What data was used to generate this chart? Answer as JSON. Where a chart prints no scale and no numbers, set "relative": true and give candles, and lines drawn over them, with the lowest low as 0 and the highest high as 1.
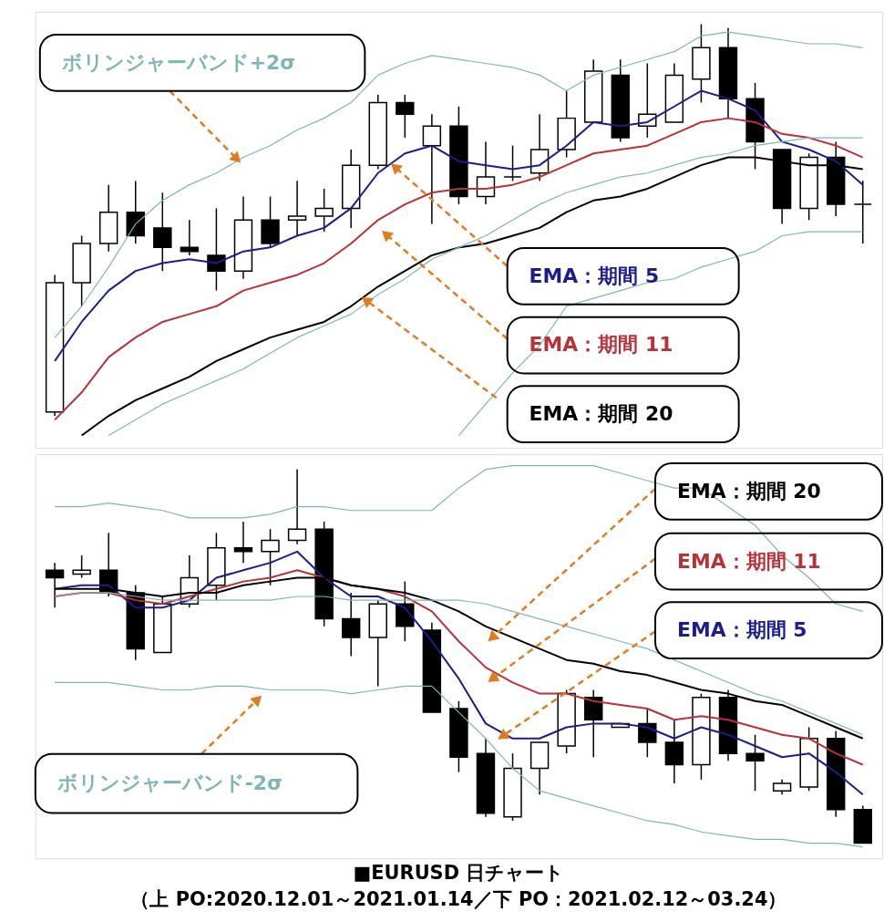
{
  "chart_data": [
    {
      "type": "candlestick",
      "relative": true,
      "categories": [
        null,
        null,
        null,
        null,
        null,
        null,
        null,
        null,
        null,
        null,
        null,
        null,
        null,
        null,
        null,
        null,
        null,
        null,
        null,
        null,
        null,
        null,
        null,
        null,
        null,
        null,
        null,
        null,
        null,
        null,
        null
      ],
      "ohlc": [
        [
          0.01,
          0.36,
          0,
          0.34
        ],
        [
          0.34,
          0.46,
          0.28,
          0.44
        ],
        [
          0.44,
          0.59,
          0.42,
          0.52
        ],
        [
          0.52,
          0.6,
          0.44,
          0.46
        ],
        [
          0.48,
          0.57,
          0.37,
          0.43
        ],
        [
          0.43,
          0.5,
          0.41,
          0.42
        ],
        [
          0.41,
          0.53,
          0.32,
          0.37
        ],
        [
          0.37,
          0.56,
          0.35,
          0.5
        ],
        [
          0.5,
          0.56,
          0.43,
          0.44
        ],
        [
          0.5,
          0.6,
          0.46,
          0.51
        ],
        [
          0.51,
          0.58,
          0.47,
          0.53
        ],
        [
          0.53,
          0.68,
          0.48,
          0.64
        ],
        [
          0.64,
          0.82,
          0.63,
          0.8
        ],
        [
          0.8,
          0.82,
          0.71,
          0.77
        ],
        [
          0.69,
          0.77,
          0.49,
          0.74
        ],
        [
          0.74,
          0.79,
          0.54,
          0.56
        ],
        [
          0.56,
          0.7,
          0.54,
          0.61
        ],
        [
          0.61,
          0.69,
          0.6,
          0.61
        ],
        [
          0.62,
          0.77,
          0.6,
          0.68
        ],
        [
          0.68,
          0.83,
          0.66,
          0.76
        ],
        [
          0.75,
          0.91,
          0.75,
          0.88
        ],
        [
          0.87,
          0.91,
          0.7,
          0.71
        ],
        [
          0.74,
          0.9,
          0.71,
          0.77
        ],
        [
          0.75,
          0.9,
          0.75,
          0.87
        ],
        [
          0.86,
          1,
          0.8,
          0.94
        ],
        [
          0.94,
          0.99,
          0.76,
          0.81
        ],
        [
          0.81,
          0.85,
          0.63,
          0.7
        ],
        [
          0.68,
          0.68,
          0.49,
          0.53
        ],
        [
          0.53,
          0.67,
          0.5,
          0.66
        ],
        [
          0.66,
          0.7,
          0.51,
          0.54
        ],
        [
          0.54,
          0.6,
          0.44,
          0.54
        ]
      ],
      "series": [
        {
          "name": "EMA：期間 5",
          "type": "line",
          "color": "#1c1c8c",
          "values": [
            0.14,
            0.24,
            0.32,
            0.37,
            0.39,
            0.4,
            0.39,
            0.42,
            0.43,
            0.46,
            0.48,
            0.53,
            0.62,
            0.67,
            0.69,
            0.65,
            0.64,
            0.63,
            0.64,
            0.69,
            0.75,
            0.74,
            0.75,
            0.79,
            0.83,
            0.81,
            0.78,
            0.7,
            0.68,
            0.65,
            0.59
          ]
        },
        {
          "name": "EMA：期間 11",
          "type": "line",
          "color": "#b8323a",
          "values": [
            -0.01,
            0.06,
            0.15,
            0.2,
            0.24,
            0.26,
            0.28,
            0.32,
            0.34,
            0.36,
            0.39,
            0.44,
            0.5,
            0.54,
            0.57,
            0.58,
            0.58,
            0.59,
            0.61,
            0.64,
            0.67,
            0.68,
            0.69,
            0.72,
            0.75,
            0.76,
            0.75,
            0.72,
            0.71,
            0.69,
            0.66
          ]
        },
        {
          "name": "EMA：期間 20",
          "type": "line",
          "color": "#000000",
          "values": [
            null,
            -0.05,
            0,
            0.04,
            0.07,
            0.1,
            0.14,
            0.17,
            0.2,
            0.22,
            0.24,
            0.28,
            0.33,
            0.37,
            0.41,
            0.43,
            0.44,
            0.46,
            0.48,
            0.52,
            0.55,
            0.56,
            0.58,
            0.61,
            0.64,
            0.66,
            0.66,
            0.65,
            0.64,
            0.64,
            0.63
          ]
        },
        {
          "name": "ボリンジャーバンド+2σ",
          "type": "line",
          "color": "#7fb5b5",
          "values": [
            0.2,
            0.28,
            0.38,
            0.49,
            0.55,
            0.59,
            0.62,
            0.66,
            0.69,
            0.73,
            0.76,
            0.8,
            0.87,
            0.9,
            0.92,
            0.91,
            0.9,
            0.89,
            0.87,
            0.83,
            0.87,
            0.89,
            0.91,
            0.93,
            0.97,
            0.98,
            0.97,
            0.96,
            0.95,
            0.95,
            0.94
          ]
        },
        {
          "type": "line",
          "color": "#7fb5b5",
          "values": [
            null,
            null,
            -0.05,
            -0.01,
            0.03,
            0.06,
            0.09,
            0.12,
            0.16,
            0.2,
            0.23,
            0.26,
            0.31,
            0.35,
            0.4,
            0.43,
            0.46,
            0.5,
            0.54,
            0.57,
            0.59,
            0.61,
            0.62,
            0.64,
            0.66,
            0.67,
            0.69,
            0.7,
            0.71,
            0.71,
            0.71
          ]
        },
        {
          "type": "line",
          "color": "#7fb5b5",
          "values": [
            null,
            null,
            null,
            null,
            null,
            null,
            null,
            null,
            null,
            null,
            null,
            null,
            null,
            null,
            null,
            -0.05,
            0.03,
            0.11,
            0.18,
            0.28,
            0.3,
            0.32,
            0.34,
            0.35,
            0.38,
            0.4,
            0.42,
            0.46,
            0.47,
            0.47,
            0.47
          ]
        }
      ]
    },
    {
      "type": "candlestick",
      "relative": true,
      "title": "■EURUSD 日チャート",
      "subtitle": "（上 PO:2020.12.01～2021.01.14／下 PO：2021.02.12～03.24）",
      "categories": [
        null,
        null,
        null,
        null,
        null,
        null,
        null,
        null,
        null,
        null,
        null,
        null,
        null,
        null,
        null,
        null,
        null,
        null,
        null,
        null,
        null,
        null,
        null,
        null,
        null,
        null,
        null,
        null,
        null,
        null,
        null
      ],
      "ohlc": [
        [
          0.73,
          0.75,
          0.63,
          0.71
        ],
        [
          0.72,
          0.77,
          0.71,
          0.73
        ],
        [
          0.73,
          0.83,
          0.66,
          0.67
        ],
        [
          0.67,
          0.69,
          0.49,
          0.52
        ],
        [
          0.51,
          0.66,
          0.51,
          0.64
        ],
        [
          0.64,
          0.77,
          0.63,
          0.71
        ],
        [
          0.69,
          0.83,
          0.65,
          0.79
        ],
        [
          0.79,
          0.86,
          0.75,
          0.78
        ],
        [
          0.78,
          0.84,
          0.69,
          0.81
        ],
        [
          0.81,
          1,
          0.8,
          0.84
        ],
        [
          0.84,
          0.86,
          0.58,
          0.6
        ],
        [
          0.6,
          0.67,
          0.5,
          0.55
        ],
        [
          0.55,
          0.65,
          0.42,
          0.64
        ],
        [
          0.64,
          0.7,
          0.54,
          0.58
        ],
        [
          0.57,
          0.59,
          0.35,
          0.35
        ],
        [
          0.36,
          0.38,
          0.19,
          0.23
        ],
        [
          0.24,
          0.28,
          0.07,
          0.08
        ],
        [
          0.07,
          0.24,
          0.06,
          0.2
        ],
        [
          0.2,
          0.27,
          0.13,
          0.27
        ],
        [
          0.26,
          0.41,
          0.24,
          0.4
        ],
        [
          0.39,
          0.41,
          0.23,
          0.33
        ],
        [
          0.31,
          0.32,
          0.31,
          0.32
        ],
        [
          0.32,
          0.36,
          0.23,
          0.27
        ],
        [
          0.27,
          0.33,
          0.16,
          0.21
        ],
        [
          0.21,
          0.4,
          0.17,
          0.39
        ],
        [
          0.39,
          0.41,
          0.22,
          0.24
        ],
        [
          0.24,
          0.29,
          0.14,
          0.22
        ],
        [
          0.14,
          0.17,
          0.13,
          0.16
        ],
        [
          0.15,
          0.31,
          0.14,
          0.28
        ],
        [
          0.28,
          0.3,
          0.07,
          0.09
        ],
        [
          0.09,
          0.1,
          0,
          0
        ]
      ],
      "series": [
        {
          "name": "EMA：期間 5",
          "type": "line",
          "color": "#1c1c8c",
          "values": [
            0.68,
            0.69,
            0.69,
            0.63,
            0.63,
            0.65,
            0.71,
            0.73,
            0.75,
            0.78,
            0.71,
            0.66,
            0.66,
            0.63,
            0.54,
            0.44,
            0.32,
            0.28,
            0.28,
            0.31,
            0.32,
            0.32,
            0.31,
            0.28,
            0.31,
            0.29,
            0.26,
            0.23,
            0.24,
            0.19,
            0.13
          ]
        },
        {
          "name": "EMA：期間 11",
          "type": "line",
          "color": "#b8323a",
          "values": [
            0.66,
            0.67,
            0.67,
            0.65,
            0.64,
            0.66,
            0.68,
            0.7,
            0.71,
            0.73,
            0.71,
            0.69,
            0.68,
            0.66,
            0.62,
            0.54,
            0.47,
            0.43,
            0.4,
            0.4,
            0.38,
            0.37,
            0.36,
            0.33,
            0.34,
            0.33,
            0.31,
            0.29,
            0.28,
            0.24,
            0.21
          ]
        },
        {
          "name": "EMA：期間 20",
          "type": "line",
          "color": "#000000",
          "values": [
            0.68,
            0.68,
            0.68,
            0.67,
            0.66,
            0.67,
            0.67,
            0.69,
            0.7,
            0.71,
            0.71,
            0.69,
            0.68,
            0.67,
            0.65,
            0.62,
            0.58,
            0.55,
            0.52,
            0.49,
            0.48,
            0.46,
            0.45,
            0.43,
            0.41,
            0.4,
            0.38,
            0.37,
            0.34,
            0.31,
            0.28
          ]
        },
        {
          "type": "line",
          "color": "#7fb5b5",
          "values": [
            0.9,
            0.9,
            0.91,
            0.9,
            0.89,
            0.87,
            0.87,
            0.87,
            0.88,
            0.9,
            0.9,
            0.89,
            0.89,
            0.89,
            0.89,
            0.95,
            1.0,
            1.01,
            1.01,
            1.01,
            1.01,
            0.99,
            0.97,
            0.95,
            0.95,
            0.9,
            0.85,
            0.77,
            0.71,
            0.64,
            0.62
          ]
        },
        {
          "type": "line",
          "color": "#7fb5b5",
          "values": [
            0.66,
            0.67,
            0.67,
            0.66,
            0.65,
            0.65,
            0.65,
            0.65,
            0.65,
            0.66,
            0.66,
            0.65,
            0.65,
            0.65,
            0.65,
            0.65,
            0.64,
            0.62,
            0.6,
            0.58,
            0.56,
            0.54,
            0.52,
            0.49,
            0.46,
            0.43,
            0.4,
            0.38,
            0.35,
            0.32,
            0.29
          ]
        },
        {
          "name": "ボリンジャーバンド-2σ",
          "type": "line",
          "color": "#7fb5b5",
          "values": [
            0.43,
            0.43,
            0.43,
            0.42,
            0.41,
            0.41,
            0.42,
            0.42,
            0.41,
            0.41,
            0.41,
            0.4,
            0.41,
            0.42,
            0.42,
            0.35,
            0.28,
            0.2,
            0.14,
            0.12,
            0.1,
            0.08,
            0.06,
            0.05,
            0.03,
            0.02,
            0.01,
            0.01,
            0.0,
            0.0,
            -0.01
          ]
        }
      ]
    }
  ]
}
